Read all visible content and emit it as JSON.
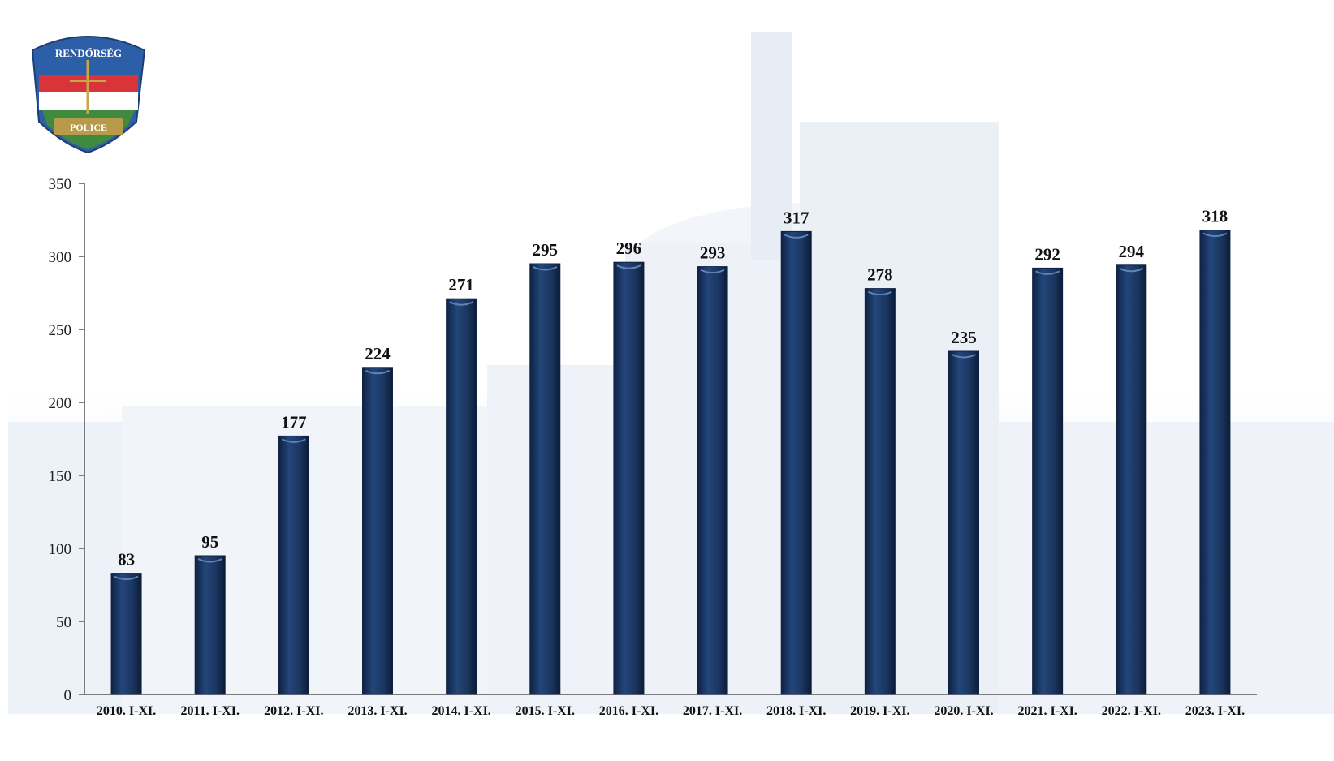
{
  "logo": {
    "top_text": "RENDŐRSÉG",
    "bottom_text": "POLICE"
  },
  "colors": {
    "bar": "#1b3660",
    "bar_dark": "#0f2243",
    "axis": "#555555",
    "background_tint": "#dfe8f3",
    "flag_red": "#d9343a",
    "flag_green": "#3f8a3e",
    "shield_blue": "#2d5fa8"
  },
  "chart_data": {
    "type": "bar",
    "categories": [
      "2010. I-XI.",
      "2011. I-XI.",
      "2012. I-XI.",
      "2013. I-XI.",
      "2014. I-XI.",
      "2015. I-XI.",
      "2016. I-XI.",
      "2017. I-XI.",
      "2018. I-XI.",
      "2019. I-XI.",
      "2020. I-XI.",
      "2021. I-XI.",
      "2022. I-XI.",
      "2023. I-XI."
    ],
    "values": [
      83,
      95,
      177,
      224,
      271,
      295,
      296,
      293,
      317,
      278,
      235,
      292,
      294,
      318
    ],
    "ylim": [
      0,
      350
    ],
    "yticks": [
      0,
      50,
      100,
      150,
      200,
      250,
      300,
      350
    ],
    "data_labels": true,
    "grid": false,
    "legend": "none",
    "title": "",
    "xlabel": "",
    "ylabel": ""
  }
}
